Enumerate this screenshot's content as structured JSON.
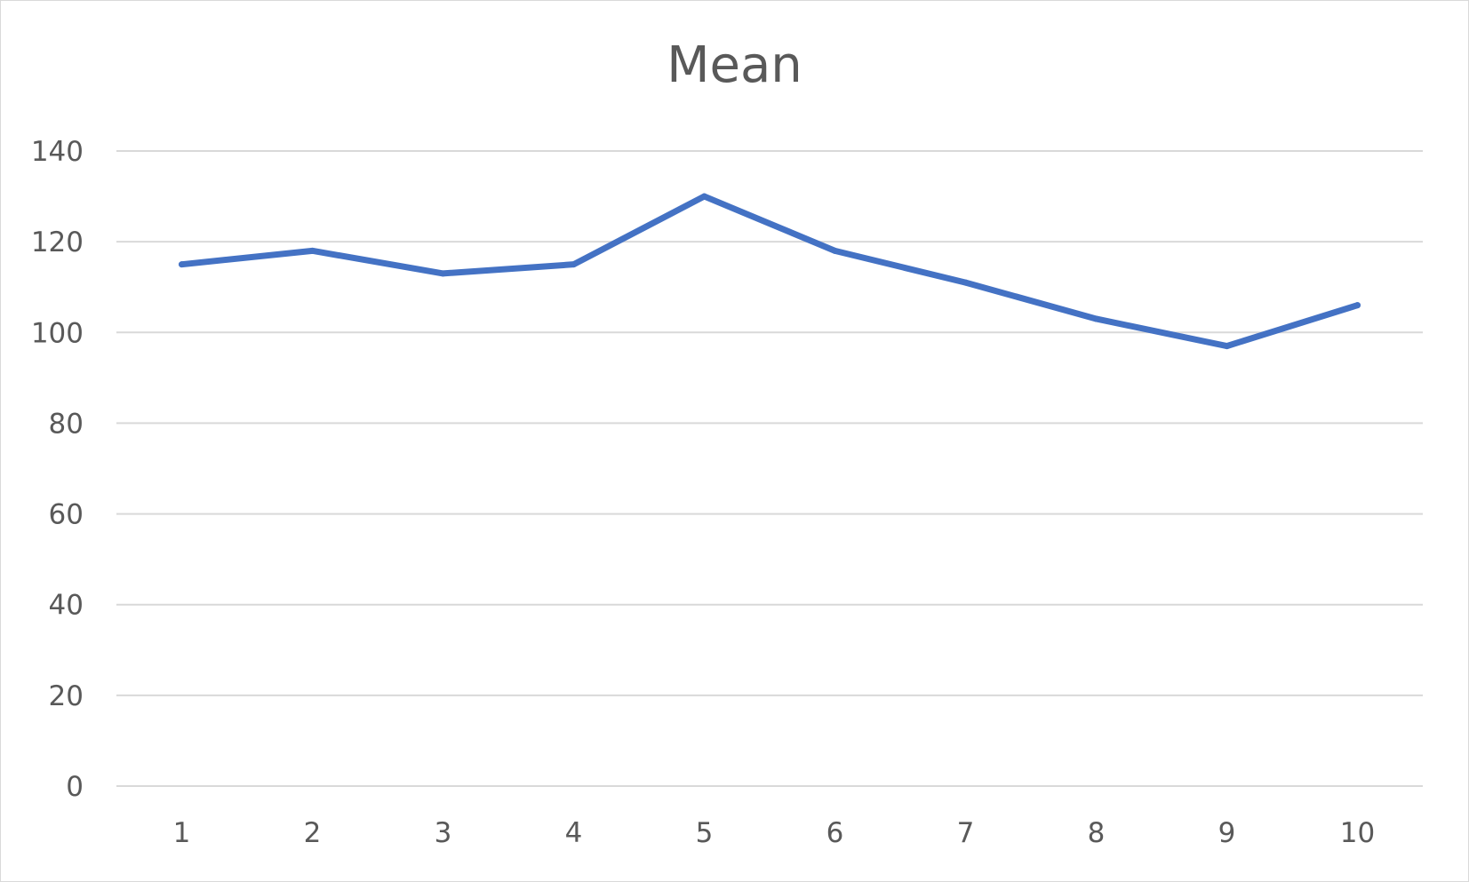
{
  "chart_data": {
    "type": "line",
    "title": "Mean",
    "xlabel": "",
    "ylabel": "",
    "categories": [
      "1",
      "2",
      "3",
      "4",
      "5",
      "6",
      "7",
      "8",
      "9",
      "10"
    ],
    "series": [
      {
        "values": [
          115,
          118,
          113,
          115,
          130,
          118,
          111,
          103,
          97,
          106
        ],
        "color": "#4472c4"
      }
    ],
    "ylim": [
      0,
      140
    ],
    "yticks": [
      0,
      20,
      40,
      60,
      80,
      100,
      120,
      140
    ],
    "grid": true,
    "legend": "none",
    "gridline_color": "#d9d9d9"
  }
}
